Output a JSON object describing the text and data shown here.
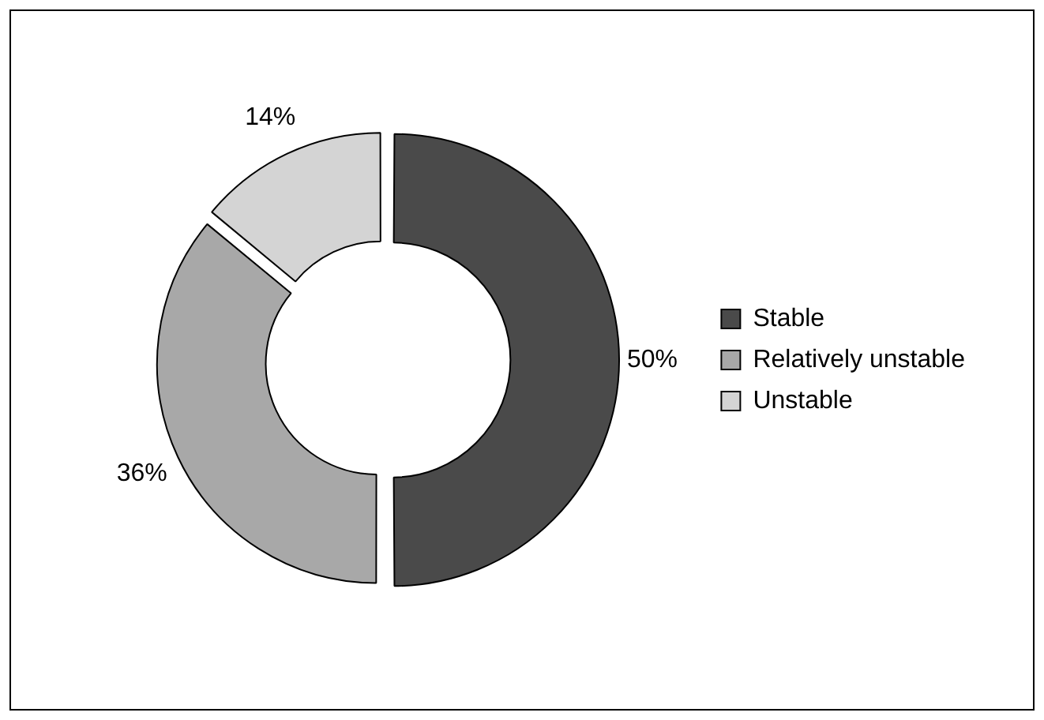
{
  "chart_data": {
    "type": "donut",
    "categories": [
      "Stable",
      "Relatively unstable",
      "Unstable"
    ],
    "values": [
      50,
      36,
      14
    ],
    "colors": [
      "#4a4a4a",
      "#a8a8a8",
      "#d4d4d4"
    ],
    "value_labels": [
      "50%",
      "36%",
      "14%"
    ],
    "legend": "right"
  }
}
